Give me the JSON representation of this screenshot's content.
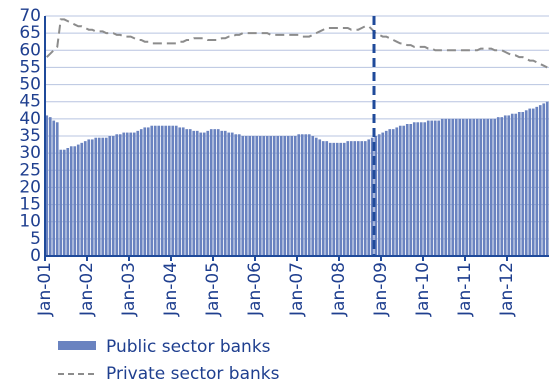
{
  "chart_data": {
    "type": "bar",
    "categories": [
      "Jan-01",
      null,
      null,
      null,
      null,
      null,
      null,
      null,
      null,
      null,
      null,
      null,
      "Jan-02",
      null,
      null,
      null,
      null,
      null,
      null,
      null,
      null,
      null,
      null,
      null,
      "Jan-03",
      null,
      null,
      null,
      null,
      null,
      null,
      null,
      null,
      null,
      null,
      null,
      "Jan-04",
      null,
      null,
      null,
      null,
      null,
      null,
      null,
      null,
      null,
      null,
      null,
      "Jan-05",
      null,
      null,
      null,
      null,
      null,
      null,
      null,
      null,
      null,
      null,
      null,
      "Jan-06",
      null,
      null,
      null,
      null,
      null,
      null,
      null,
      null,
      null,
      null,
      null,
      "Jan-07",
      null,
      null,
      null,
      null,
      null,
      null,
      null,
      null,
      null,
      null,
      null,
      "Jan-08",
      null,
      null,
      null,
      null,
      null,
      null,
      null,
      null,
      null,
      null,
      null,
      "Jan-09",
      null,
      null,
      null,
      null,
      null,
      null,
      null,
      null,
      null,
      null,
      null,
      "Jan-10",
      null,
      null,
      null,
      null,
      null,
      null,
      null,
      null,
      null,
      null,
      null,
      "Jan-11",
      null,
      null,
      null,
      null,
      null,
      null,
      null,
      null,
      null,
      null,
      null,
      "Jan-12",
      null,
      null,
      null,
      null,
      null,
      null,
      null,
      null,
      null,
      null,
      null
    ],
    "series": [
      {
        "name": "Public sector banks",
        "type": "bar",
        "color": "#6a83c0",
        "values": [
          41,
          40.5,
          39.5,
          39,
          31,
          31,
          31.5,
          32,
          32,
          32.5,
          33,
          33.5,
          34,
          34,
          34.5,
          34.5,
          34.5,
          34.5,
          35,
          35,
          35.5,
          35.5,
          36,
          36,
          36,
          36,
          36.5,
          37,
          37.5,
          37.5,
          38,
          38,
          38,
          38,
          38,
          38,
          38,
          38,
          37.5,
          37.5,
          37,
          37,
          36.5,
          36.5,
          36,
          36,
          36.5,
          37,
          37,
          37,
          36.5,
          36.5,
          36,
          36,
          35.5,
          35.5,
          35,
          35,
          35,
          35,
          35,
          35,
          35,
          35,
          35,
          35,
          35,
          35,
          35,
          35,
          35,
          35,
          35.5,
          35.5,
          35.5,
          35.5,
          35,
          34.5,
          34,
          33.5,
          33.5,
          33,
          33,
          33,
          33,
          33,
          33.5,
          33.5,
          33.5,
          33.5,
          33.5,
          33.5,
          34,
          34.5,
          35,
          35.5,
          36,
          36.5,
          37,
          37,
          37.5,
          38,
          38,
          38.5,
          38.5,
          39,
          39,
          39,
          39,
          39.5,
          39.5,
          39.5,
          39.5,
          40,
          40,
          40,
          40,
          40,
          40,
          40,
          40,
          40,
          40,
          40,
          40,
          40,
          40,
          40,
          40,
          40.5,
          40.5,
          41,
          41,
          41.5,
          41.5,
          42,
          42,
          42.5,
          43,
          43,
          43.5,
          44,
          44.5,
          45
        ]
      },
      {
        "name": "Private sector banks",
        "type": "line",
        "color": "#8c8c8c",
        "values": [
          58,
          59,
          60,
          61,
          69,
          69,
          68.5,
          68,
          67.5,
          67,
          67,
          66.5,
          66,
          66,
          65.5,
          65.5,
          65.5,
          65,
          65,
          65,
          64.5,
          64.5,
          64,
          64,
          64,
          63.5,
          63,
          63,
          62.5,
          62.5,
          62,
          62,
          62,
          62,
          62,
          62,
          62,
          62,
          62.5,
          62.5,
          63,
          63,
          63.5,
          63.5,
          63.5,
          63.5,
          63,
          63,
          63,
          63,
          63.5,
          63.5,
          64,
          64,
          64.5,
          64.5,
          65,
          65,
          65,
          65,
          65,
          65,
          65,
          65,
          64.5,
          64.5,
          64.5,
          64.5,
          64.5,
          64.5,
          64.5,
          64.5,
          64.5,
          64,
          64,
          64,
          64.5,
          65,
          65.5,
          66,
          66.5,
          66.5,
          66.5,
          66.5,
          66.5,
          66.5,
          66.5,
          66,
          66,
          66,
          66.5,
          67,
          67,
          66,
          65,
          64.5,
          64,
          64,
          63.5,
          63,
          62.5,
          62,
          62,
          61.5,
          61.5,
          61,
          61,
          61,
          61,
          60.5,
          60.5,
          60,
          60,
          60,
          60,
          60,
          60,
          60,
          60,
          60,
          60,
          60,
          60,
          60,
          60.5,
          60.5,
          60.5,
          60.5,
          60,
          60,
          60,
          59.5,
          59,
          58.5,
          58.5,
          58,
          58,
          57.5,
          57,
          57,
          56.5,
          56,
          55.5,
          55
        ]
      }
    ],
    "ylim": [
      0,
      70
    ],
    "yticks": [
      0,
      5,
      10,
      15,
      20,
      25,
      30,
      35,
      40,
      45,
      50,
      55,
      60,
      65,
      70
    ],
    "grid": true
  }
}
